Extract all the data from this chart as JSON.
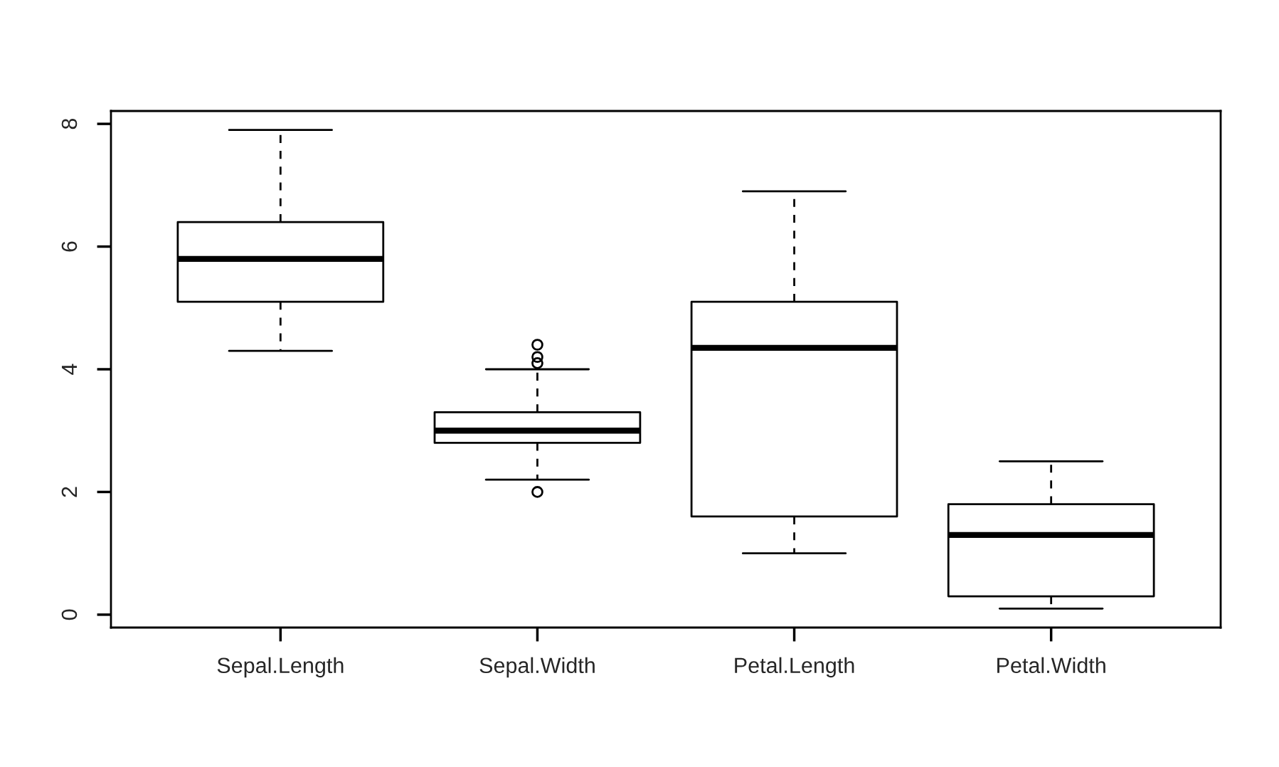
{
  "chart_data": {
    "type": "box",
    "categories": [
      "Sepal.Length",
      "Sepal.Width",
      "Petal.Length",
      "Petal.Width"
    ],
    "boxes": [
      {
        "low": 4.3,
        "q1": 5.1,
        "median": 5.8,
        "q3": 6.4,
        "high": 7.9
      },
      {
        "low": 2.2,
        "q1": 2.8,
        "median": 3.0,
        "q3": 3.3,
        "high": 4.0,
        "outliers": [
          4.4,
          4.1,
          4.2,
          2.0
        ]
      },
      {
        "low": 1.0,
        "q1": 1.6,
        "median": 4.35,
        "q3": 5.1,
        "high": 6.9
      },
      {
        "low": 0.1,
        "q1": 0.3,
        "median": 1.3,
        "q3": 1.8,
        "high": 2.5
      }
    ],
    "color": "#000000",
    "ylim": [
      -0.21,
      8.21
    ],
    "yticks": [
      0,
      2,
      4,
      6,
      8
    ]
  }
}
